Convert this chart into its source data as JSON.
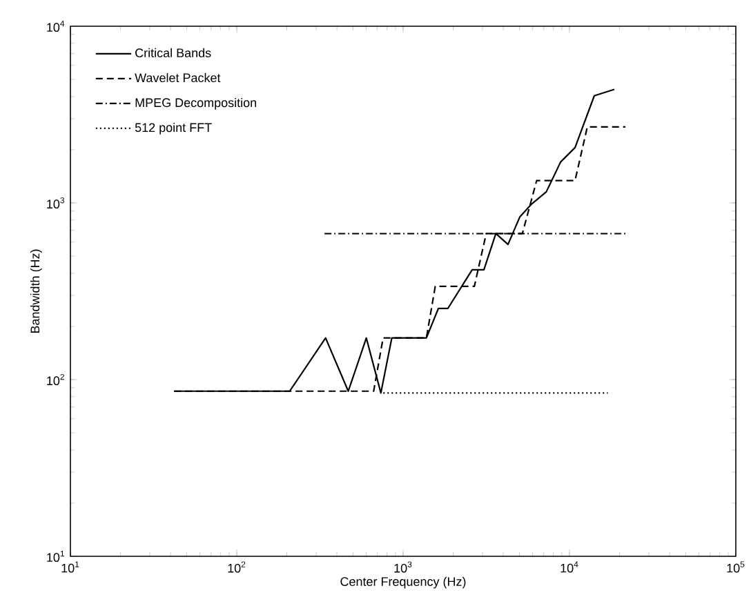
{
  "chart_data": {
    "type": "line",
    "xlabel": "Center Frequency (Hz)",
    "ylabel": "Bandwidth (Hz)",
    "log": "xy",
    "grid": false,
    "legend": "top left",
    "marker": "none",
    "xlim": [
      10,
      100000
    ],
    "ylim": [
      10,
      10000
    ],
    "xticks": [
      {
        "value": 10,
        "label": "10$^{1}$"
      },
      {
        "value": 100,
        "label": "10$^{2}$"
      },
      {
        "value": 1000,
        "label": "10$^{3}$"
      },
      {
        "value": 10000,
        "label": "10$^{4}$"
      },
      {
        "value": 100000,
        "label": "10$^{5}$"
      }
    ],
    "yticks": [
      {
        "value": 10,
        "label": "10$^{1}$"
      },
      {
        "value": 100,
        "label": "10$^{2}$"
      },
      {
        "value": 1000,
        "label": "10$^{3}$"
      },
      {
        "value": 10000,
        "label": "10$^{4}$"
      }
    ],
    "series": [
      {
        "name": "Critical Bands",
        "color": "#000000",
        "line_style": "solid",
        "x": [
          42,
          208,
          342,
          468,
          601,
          735,
          855,
          1380,
          1630,
          1860,
          2600,
          3060,
          3610,
          4270,
          5040,
          5940,
          7260,
          8850,
          10800,
          14100,
          18600
        ],
        "values": [
          86,
          86,
          172,
          86,
          172,
          84,
          172,
          172,
          253,
          253,
          418,
          418,
          671,
          582,
          836,
          988,
          1156,
          1706,
          2056,
          4040,
          4390
        ]
      },
      {
        "name": "Wavelet Packet",
        "color": "#000000",
        "line_style": "dashed",
        "x": [
          42,
          665,
          758,
          1380,
          1560,
          2680,
          3160,
          5210,
          6350,
          10800,
          12800,
          21700
        ],
        "values": [
          86,
          86,
          172,
          172,
          337,
          337,
          671,
          671,
          1337,
          1337,
          2690,
          2690
        ]
      },
      {
        "name": "MPEG Decomposition",
        "color": "#000000",
        "line_style": "dashdot",
        "x": [
          337,
          21700
        ],
        "values": [
          670,
          670
        ]
      },
      {
        "name": "512 point FFT",
        "color": "#000000",
        "line_style": "dotted",
        "x": [
          760,
          17000
        ],
        "values": [
          84,
          84
        ]
      }
    ]
  }
}
